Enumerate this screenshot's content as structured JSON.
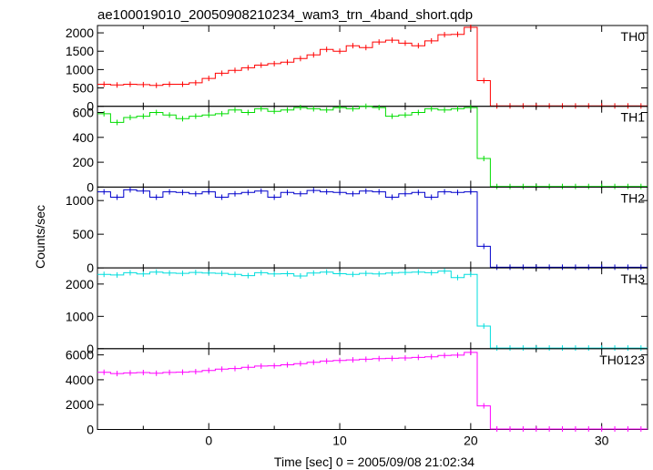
{
  "chart_data": {
    "type": "line",
    "title": "ae100019010_20050908210234_wam3_trn_4band_short.qdp",
    "xlabel": "Time [sec] 0 = 2005/09/08 21:02:34",
    "ylabel": "Counts/sec",
    "xlim": [
      -8.5,
      33.5
    ],
    "xticks": [
      0,
      10,
      20,
      30
    ],
    "x": [
      -8,
      -7,
      -6,
      -5,
      -4,
      -3,
      -2,
      -1,
      0,
      1,
      2,
      3,
      4,
      5,
      6,
      7,
      8,
      9,
      10,
      11,
      12,
      13,
      14,
      15,
      16,
      17,
      18,
      19,
      20,
      21,
      22,
      23,
      24,
      25,
      26,
      27,
      28,
      29,
      30,
      31,
      32,
      33
    ],
    "panels": [
      {
        "name": "TH0",
        "color": "#ff0000",
        "ylim": [
          0,
          2200
        ],
        "yticks": [
          0,
          500,
          1000,
          1500,
          2000
        ],
        "values": [
          600,
          580,
          600,
          590,
          570,
          600,
          600,
          640,
          760,
          900,
          980,
          1050,
          1120,
          1160,
          1200,
          1300,
          1400,
          1550,
          1500,
          1650,
          1600,
          1750,
          1800,
          1720,
          1650,
          1780,
          1950,
          1960,
          2150,
          700,
          10,
          10,
          10,
          10,
          10,
          10,
          10,
          10,
          10,
          10,
          10,
          10
        ]
      },
      {
        "name": "TH1",
        "color": "#00dd00",
        "ylim": [
          0,
          650
        ],
        "yticks": [
          0,
          200,
          400,
          600
        ],
        "values": [
          590,
          520,
          560,
          570,
          600,
          580,
          550,
          570,
          580,
          590,
          620,
          600,
          630,
          610,
          620,
          640,
          630,
          620,
          640,
          630,
          650,
          640,
          570,
          580,
          600,
          630,
          620,
          630,
          640,
          230,
          5,
          5,
          5,
          5,
          5,
          5,
          5,
          5,
          5,
          5,
          5,
          5
        ]
      },
      {
        "name": "TH2",
        "color": "#0000cc",
        "ylim": [
          0,
          1200
        ],
        "yticks": [
          0,
          500,
          1000
        ],
        "values": [
          1130,
          1050,
          1160,
          1140,
          1050,
          1130,
          1120,
          1100,
          1130,
          1050,
          1100,
          1120,
          1140,
          1050,
          1120,
          1100,
          1150,
          1130,
          1120,
          1100,
          1140,
          1130,
          1050,
          1100,
          1120,
          1050,
          1130,
          1120,
          1130,
          320,
          10,
          10,
          10,
          10,
          10,
          10,
          10,
          10,
          10,
          10,
          10,
          10
        ]
      },
      {
        "name": "TH3",
        "color": "#00dddd",
        "ylim": [
          0,
          2500
        ],
        "yticks": [
          0,
          1000,
          2000
        ],
        "values": [
          2300,
          2280,
          2350,
          2310,
          2370,
          2340,
          2330,
          2360,
          2340,
          2330,
          2300,
          2260,
          2350,
          2310,
          2320,
          2250,
          2340,
          2370,
          2320,
          2300,
          2330,
          2310,
          2340,
          2360,
          2370,
          2350,
          2400,
          2200,
          2300,
          700,
          20,
          20,
          20,
          20,
          20,
          20,
          20,
          20,
          20,
          20,
          20,
          20
        ]
      },
      {
        "name": "TH0123",
        "color": "#ff00ff",
        "ylim": [
          0,
          6500
        ],
        "yticks": [
          0,
          2000,
          4000,
          6000
        ],
        "values": [
          4600,
          4500,
          4550,
          4580,
          4520,
          4590,
          4610,
          4650,
          4750,
          4850,
          4900,
          5000,
          5100,
          5120,
          5200,
          5300,
          5400,
          5500,
          5550,
          5600,
          5650,
          5700,
          5720,
          5750,
          5800,
          5850,
          5950,
          5980,
          6200,
          1900,
          40,
          40,
          40,
          40,
          40,
          40,
          40,
          40,
          40,
          40,
          40,
          40
        ]
      }
    ]
  }
}
